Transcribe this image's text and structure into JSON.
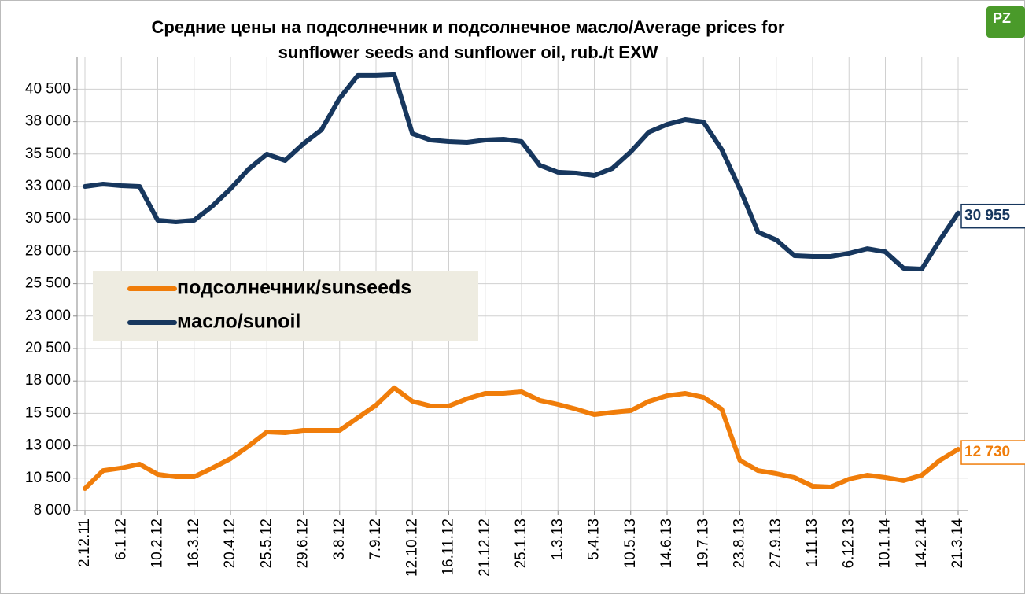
{
  "chart_data": {
    "type": "line",
    "title": [
      "Средние цены на подсолнечник и подсолнечное масло/Average prices for",
      "sunflower seeds and sunflower oil, rub./t EXW"
    ],
    "categories": [
      "2.12.11",
      null,
      "6.1.12",
      null,
      "10.2.12",
      null,
      "16.3.12",
      null,
      "20.4.12",
      null,
      "25.5.12",
      null,
      "29.6.12",
      null,
      "3.8.12",
      null,
      "7.9.12",
      null,
      "12.10.12",
      null,
      "16.11.12",
      null,
      "21.12.12",
      null,
      "25.1.13",
      null,
      "1.3.13",
      null,
      "5.4.13",
      null,
      "10.5.13",
      null,
      "14.6.13",
      null,
      "19.7.13",
      null,
      "23.8.13",
      null,
      "27.9.13",
      null,
      "1.11.13",
      null,
      "6.12.13",
      null,
      "10.1.14",
      null,
      "14.2.14",
      null,
      "21.3.14"
    ],
    "series": [
      {
        "name": "подсолнечник/sunseeds",
        "color": "#f07d0a",
        "values": [
          9700,
          11090,
          11280,
          11580,
          10790,
          10610,
          10610,
          11280,
          12000,
          12980,
          14070,
          14010,
          14190,
          14190,
          14190,
          15160,
          16130,
          17470,
          16430,
          16070,
          16070,
          16620,
          17040,
          17040,
          17160,
          16500,
          16190,
          15830,
          15400,
          15580,
          15710,
          16430,
          16860,
          17040,
          16740,
          15830,
          11880,
          11090,
          10850,
          10550,
          9880,
          9820,
          10430,
          10730,
          10550,
          10310,
          10730,
          11880,
          12730
        ],
        "value_labels": [
          null,
          null,
          null,
          null,
          null,
          null,
          null,
          null,
          null,
          null,
          null,
          null,
          null,
          null,
          null,
          null,
          null,
          null,
          null,
          null,
          null,
          null,
          null,
          null,
          null,
          null,
          null,
          null,
          null,
          null,
          null,
          null,
          null,
          null,
          null,
          null,
          null,
          null,
          null,
          null,
          null,
          null,
          null,
          null,
          null,
          null,
          null,
          null,
          "12 730"
        ]
      },
      {
        "name": "масло/sunoil",
        "color": "#17375e",
        "values": [
          33000,
          33180,
          33060,
          33000,
          30390,
          30270,
          30390,
          31480,
          32820,
          34340,
          35490,
          35000,
          36280,
          37370,
          39800,
          41560,
          41560,
          41620,
          37070,
          36580,
          36460,
          36400,
          36580,
          36640,
          36460,
          34640,
          34100,
          34030,
          33850,
          34400,
          35670,
          37190,
          37790,
          38160,
          37970,
          35850,
          32820,
          29480,
          28880,
          27660,
          27600,
          27600,
          27840,
          28200,
          27960,
          26690,
          26630,
          28880,
          30955
        ],
        "value_labels": [
          null,
          null,
          null,
          null,
          null,
          null,
          null,
          null,
          null,
          null,
          null,
          null,
          null,
          null,
          null,
          null,
          null,
          null,
          null,
          null,
          null,
          null,
          null,
          null,
          null,
          null,
          null,
          null,
          null,
          null,
          null,
          null,
          null,
          null,
          null,
          null,
          null,
          null,
          null,
          null,
          null,
          null,
          null,
          null,
          null,
          null,
          null,
          null,
          "30 955"
        ]
      }
    ],
    "ylim": [
      8000,
      43000
    ],
    "yticks": [
      {
        "value": 8000,
        "label": "8 000"
      },
      {
        "value": 10500,
        "label": "10 500"
      },
      {
        "value": 13000,
        "label": "13 000"
      },
      {
        "value": 15500,
        "label": "15 500"
      },
      {
        "value": 18000,
        "label": "18 000"
      },
      {
        "value": 20500,
        "label": "20 500"
      },
      {
        "value": 23000,
        "label": "23 000"
      },
      {
        "value": 25500,
        "label": "25 500"
      },
      {
        "value": 28000,
        "label": "28 000"
      },
      {
        "value": 30500,
        "label": "30 500"
      },
      {
        "value": 33000,
        "label": "33 000"
      },
      {
        "value": 35500,
        "label": "35 500"
      },
      {
        "value": 38000,
        "label": "38 000"
      },
      {
        "value": 40500,
        "label": "40 500"
      }
    ],
    "grid": true
  }
}
